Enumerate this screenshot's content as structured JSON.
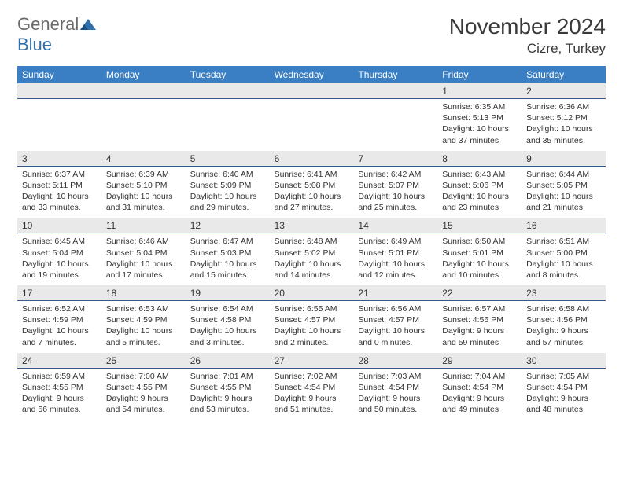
{
  "brand": {
    "part1": "General",
    "part2": "Blue"
  },
  "title": "November 2024",
  "location": "Cizre, Turkey",
  "colors": {
    "header_blue": "#3a7fc4",
    "daynum_bg": "#e9e9e9",
    "border": "#36598a",
    "logo_gray": "#6b6b6b",
    "logo_blue": "#2f6fab"
  },
  "days_of_week": [
    "Sunday",
    "Monday",
    "Tuesday",
    "Wednesday",
    "Thursday",
    "Friday",
    "Saturday"
  ],
  "weeks": [
    {
      "nums": [
        "",
        "",
        "",
        "",
        "",
        "1",
        "2"
      ],
      "cells": [
        null,
        null,
        null,
        null,
        null,
        {
          "sunrise": "6:35 AM",
          "sunset": "5:13 PM",
          "dlh": 10,
          "dlm": 37
        },
        {
          "sunrise": "6:36 AM",
          "sunset": "5:12 PM",
          "dlh": 10,
          "dlm": 35
        }
      ]
    },
    {
      "nums": [
        "3",
        "4",
        "5",
        "6",
        "7",
        "8",
        "9"
      ],
      "cells": [
        {
          "sunrise": "6:37 AM",
          "sunset": "5:11 PM",
          "dlh": 10,
          "dlm": 33
        },
        {
          "sunrise": "6:39 AM",
          "sunset": "5:10 PM",
          "dlh": 10,
          "dlm": 31
        },
        {
          "sunrise": "6:40 AM",
          "sunset": "5:09 PM",
          "dlh": 10,
          "dlm": 29
        },
        {
          "sunrise": "6:41 AM",
          "sunset": "5:08 PM",
          "dlh": 10,
          "dlm": 27
        },
        {
          "sunrise": "6:42 AM",
          "sunset": "5:07 PM",
          "dlh": 10,
          "dlm": 25
        },
        {
          "sunrise": "6:43 AM",
          "sunset": "5:06 PM",
          "dlh": 10,
          "dlm": 23
        },
        {
          "sunrise": "6:44 AM",
          "sunset": "5:05 PM",
          "dlh": 10,
          "dlm": 21
        }
      ]
    },
    {
      "nums": [
        "10",
        "11",
        "12",
        "13",
        "14",
        "15",
        "16"
      ],
      "cells": [
        {
          "sunrise": "6:45 AM",
          "sunset": "5:04 PM",
          "dlh": 10,
          "dlm": 19
        },
        {
          "sunrise": "6:46 AM",
          "sunset": "5:04 PM",
          "dlh": 10,
          "dlm": 17
        },
        {
          "sunrise": "6:47 AM",
          "sunset": "5:03 PM",
          "dlh": 10,
          "dlm": 15
        },
        {
          "sunrise": "6:48 AM",
          "sunset": "5:02 PM",
          "dlh": 10,
          "dlm": 14
        },
        {
          "sunrise": "6:49 AM",
          "sunset": "5:01 PM",
          "dlh": 10,
          "dlm": 12
        },
        {
          "sunrise": "6:50 AM",
          "sunset": "5:01 PM",
          "dlh": 10,
          "dlm": 10
        },
        {
          "sunrise": "6:51 AM",
          "sunset": "5:00 PM",
          "dlh": 10,
          "dlm": 8
        }
      ]
    },
    {
      "nums": [
        "17",
        "18",
        "19",
        "20",
        "21",
        "22",
        "23"
      ],
      "cells": [
        {
          "sunrise": "6:52 AM",
          "sunset": "4:59 PM",
          "dlh": 10,
          "dlm": 7
        },
        {
          "sunrise": "6:53 AM",
          "sunset": "4:59 PM",
          "dlh": 10,
          "dlm": 5
        },
        {
          "sunrise": "6:54 AM",
          "sunset": "4:58 PM",
          "dlh": 10,
          "dlm": 3
        },
        {
          "sunrise": "6:55 AM",
          "sunset": "4:57 PM",
          "dlh": 10,
          "dlm": 2
        },
        {
          "sunrise": "6:56 AM",
          "sunset": "4:57 PM",
          "dlh": 10,
          "dlm": 0
        },
        {
          "sunrise": "6:57 AM",
          "sunset": "4:56 PM",
          "dlh": 9,
          "dlm": 59
        },
        {
          "sunrise": "6:58 AM",
          "sunset": "4:56 PM",
          "dlh": 9,
          "dlm": 57
        }
      ]
    },
    {
      "nums": [
        "24",
        "25",
        "26",
        "27",
        "28",
        "29",
        "30"
      ],
      "cells": [
        {
          "sunrise": "6:59 AM",
          "sunset": "4:55 PM",
          "dlh": 9,
          "dlm": 56
        },
        {
          "sunrise": "7:00 AM",
          "sunset": "4:55 PM",
          "dlh": 9,
          "dlm": 54
        },
        {
          "sunrise": "7:01 AM",
          "sunset": "4:55 PM",
          "dlh": 9,
          "dlm": 53
        },
        {
          "sunrise": "7:02 AM",
          "sunset": "4:54 PM",
          "dlh": 9,
          "dlm": 51
        },
        {
          "sunrise": "7:03 AM",
          "sunset": "4:54 PM",
          "dlh": 9,
          "dlm": 50
        },
        {
          "sunrise": "7:04 AM",
          "sunset": "4:54 PM",
          "dlh": 9,
          "dlm": 49
        },
        {
          "sunrise": "7:05 AM",
          "sunset": "4:54 PM",
          "dlh": 9,
          "dlm": 48
        }
      ]
    }
  ]
}
